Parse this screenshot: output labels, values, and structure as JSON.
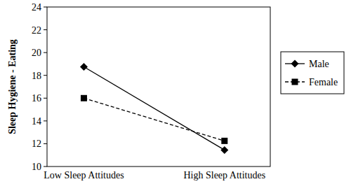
{
  "chart_data": {
    "type": "line",
    "y_label": "Sleep Hygiene - Eating",
    "categories": [
      "Low Sleep Attitudes",
      "High Sleep Attitudes"
    ],
    "series": [
      {
        "name": "Male",
        "color": "#000000",
        "marker": "diamond",
        "line_style": "solid",
        "values": [
          18.75,
          11.45
        ]
      },
      {
        "name": "Female",
        "color": "#000000",
        "marker": "square",
        "line_style": "dashed",
        "values": [
          16.0,
          12.25
        ]
      }
    ],
    "ylim": [
      10,
      24
    ],
    "yticks": [
      10,
      12,
      14,
      16,
      18,
      20,
      22,
      24
    ],
    "grid": false,
    "legend": "right"
  }
}
